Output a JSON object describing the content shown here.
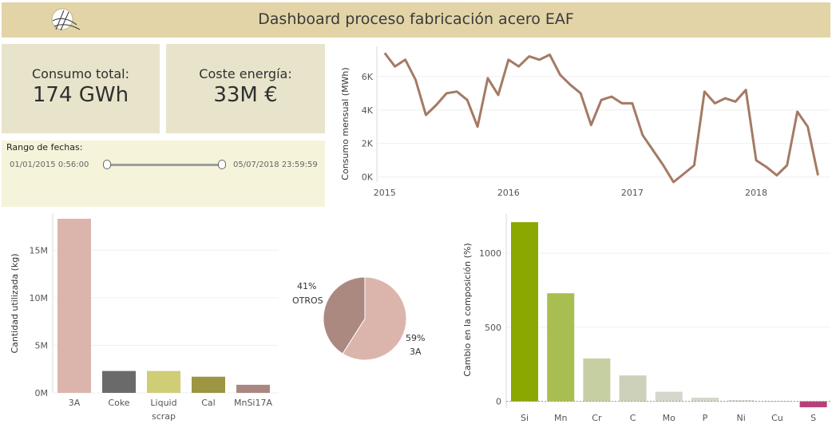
{
  "header": {
    "title": "Dashboard proceso fabricación acero EAF",
    "logo_icon": "signature-logo"
  },
  "kpis": {
    "consumo": {
      "label": "Consumo total:",
      "value": "174 GWh"
    },
    "coste": {
      "label": "Coste energía:",
      "value": "33M €"
    }
  },
  "filter": {
    "title": "Rango de fechas:",
    "start": "01/01/2015 0:56:00",
    "end": "05/07/2018 23:59:59",
    "selected_fraction": [
      0,
      1
    ]
  },
  "chart_data": [
    {
      "id": "line",
      "type": "line",
      "ylabel": "Consumo mensual (MWh)",
      "yticks": [
        0,
        2000,
        4000,
        6000
      ],
      "ytick_labels": [
        "0K",
        "2K",
        "4K",
        "6K"
      ],
      "ylim": [
        -300,
        7800
      ],
      "xlim": [
        2014.95,
        2018.6
      ],
      "xticks": [
        2015,
        2016,
        2017,
        2018
      ],
      "xtick_labels": [
        "2015",
        "2016",
        "2017",
        "2018"
      ],
      "color": "#a47a64",
      "grid": true,
      "points": [
        [
          2015.0,
          7400
        ],
        [
          2015.083,
          6600
        ],
        [
          2015.167,
          7000
        ],
        [
          2015.25,
          5800
        ],
        [
          2015.333,
          3700
        ],
        [
          2015.417,
          4300
        ],
        [
          2015.5,
          5000
        ],
        [
          2015.583,
          5100
        ],
        [
          2015.667,
          4600
        ],
        [
          2015.75,
          3000
        ],
        [
          2015.833,
          5900
        ],
        [
          2015.917,
          4900
        ],
        [
          2016.0,
          7000
        ],
        [
          2016.083,
          6600
        ],
        [
          2016.167,
          7200
        ],
        [
          2016.25,
          7000
        ],
        [
          2016.333,
          7300
        ],
        [
          2016.417,
          6100
        ],
        [
          2016.5,
          5500
        ],
        [
          2016.583,
          5000
        ],
        [
          2016.667,
          3100
        ],
        [
          2016.75,
          4600
        ],
        [
          2016.833,
          4800
        ],
        [
          2016.917,
          4400
        ],
        [
          2017.0,
          4400
        ],
        [
          2017.083,
          2500
        ],
        [
          2017.167,
          1600
        ],
        [
          2017.25,
          700
        ],
        [
          2017.333,
          -300
        ],
        [
          2017.417,
          200
        ],
        [
          2017.5,
          700
        ],
        [
          2017.583,
          5100
        ],
        [
          2017.667,
          4400
        ],
        [
          2017.75,
          4700
        ],
        [
          2017.833,
          4500
        ],
        [
          2017.917,
          5200
        ],
        [
          2018.0,
          1000
        ],
        [
          2018.083,
          600
        ],
        [
          2018.167,
          100
        ],
        [
          2018.25,
          700
        ],
        [
          2018.333,
          3900
        ],
        [
          2018.417,
          3000
        ],
        [
          2018.5,
          100
        ]
      ]
    },
    {
      "id": "bars",
      "type": "bar",
      "ylabel": "Cantidad utilizada (kg)",
      "yticks": [
        0,
        5000000,
        10000000,
        15000000
      ],
      "ytick_labels": [
        "0M",
        "5M",
        "10M",
        "15M"
      ],
      "ylim": [
        0,
        18800000
      ],
      "categories": [
        "3A",
        "Coke",
        "Liquid scrap",
        "Cal",
        "MnSi17A"
      ],
      "category_lines": [
        [
          "3A"
        ],
        [
          "Coke"
        ],
        [
          "Liquid",
          "scrap"
        ],
        [
          "Cal"
        ],
        [
          "MnSi17A"
        ]
      ],
      "values": [
        18300000,
        2300000,
        2300000,
        1700000,
        850000
      ],
      "colors": [
        "#dbb5ac",
        "#6a6a6a",
        "#cfcd76",
        "#9c9541",
        "#a98780"
      ],
      "grid": true
    },
    {
      "id": "pie",
      "type": "pie",
      "slices": [
        {
          "label": "3A",
          "value": 59,
          "pct": "59%",
          "color": "#dbb5ac"
        },
        {
          "label": "OTROS",
          "value": 41,
          "pct": "41%",
          "color": "#ab8880"
        }
      ]
    },
    {
      "id": "comp",
      "type": "bar",
      "ylabel": "Cambio en la composición (%)",
      "yticks": [
        0,
        500,
        1000
      ],
      "ytick_labels": [
        "0",
        "500",
        "1000"
      ],
      "ylim": [
        -45,
        1265
      ],
      "categories": [
        "Si",
        "Mn",
        "Cr",
        "C",
        "Mo",
        "P",
        "Ni",
        "Cu",
        "S"
      ],
      "values": [
        1210,
        730,
        290,
        175,
        65,
        25,
        8,
        3,
        -40
      ],
      "colors": [
        "#8aa800",
        "#a9be50",
        "#c6cfa2",
        "#ced1b9",
        "#d6d6cc",
        "#d6d6cc",
        "#d6d6cc",
        "#d6d6cc",
        "#b84079"
      ],
      "grid": true
    }
  ]
}
